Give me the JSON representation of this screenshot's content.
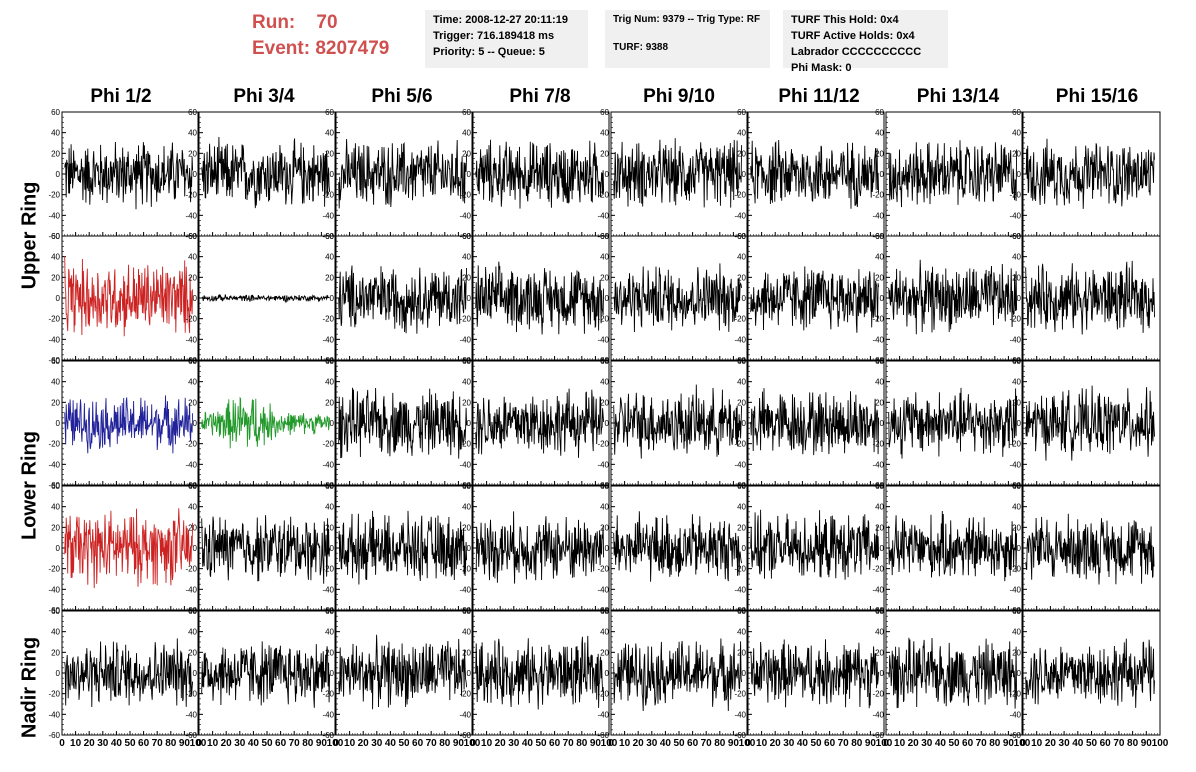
{
  "run": {
    "run_label": "Run:",
    "run_value": "70",
    "event_label": "Event:",
    "event_value": "8207479"
  },
  "info_box_1": {
    "time": "Time: 2008-12-27 20:11:19",
    "trigger": "Trigger: 716.189418 ms",
    "priority": "Priority: 5 -- Queue: 5"
  },
  "info_box_2": {
    "trig": "Trig Num: 9379 -- Trig Type: RF",
    "turf": "TURF: 9388"
  },
  "info_box_3": {
    "this_hold": "TURF This Hold: 0x4",
    "active_holds": "TURF Active Holds: 0x4",
    "labrador": "Labrador CCCCCCCCCC",
    "phi_mask": "Phi Mask: 0"
  },
  "columns": [
    "Phi 1/2",
    "Phi 3/4",
    "Phi 5/6",
    "Phi 7/8",
    "Phi 9/10",
    "Phi 11/12",
    "Phi 13/14",
    "Phi 15/16"
  ],
  "rings": [
    "Upper Ring",
    "Lower Ring",
    "Nadir Ring"
  ],
  "colors": {
    "run_text": "#d05050",
    "box_bg": "#f0f0f0",
    "trace": "#000000",
    "red": "#cc2222",
    "blue": "#22229a",
    "green": "#22992a"
  },
  "chart_data": {
    "type": "line",
    "rows": 5,
    "cols": 8,
    "xlim": [
      0,
      100
    ],
    "ylim": [
      -60,
      60
    ],
    "y_ticks": [
      -60,
      -40,
      -20,
      0,
      20,
      40,
      60
    ],
    "x_tick_labels": [
      "0",
      "10",
      "20",
      "30",
      "40",
      "50",
      "60",
      "70",
      "80",
      "90",
      "100"
    ],
    "panel_styles": [
      [
        "black",
        "black",
        "black",
        "black",
        "black",
        "black",
        "black",
        "black"
      ],
      [
        "red",
        "flat",
        "black",
        "black",
        "black",
        "black",
        "black",
        "black"
      ],
      [
        "blue",
        "green",
        "black",
        "black",
        "black",
        "black",
        "black",
        "black"
      ],
      [
        "red",
        "black",
        "black",
        "black",
        "black",
        "black",
        "black",
        "black"
      ],
      [
        "black",
        "black",
        "black",
        "black",
        "black",
        "black",
        "black",
        "black"
      ]
    ],
    "amplitude_approx": 25
  }
}
